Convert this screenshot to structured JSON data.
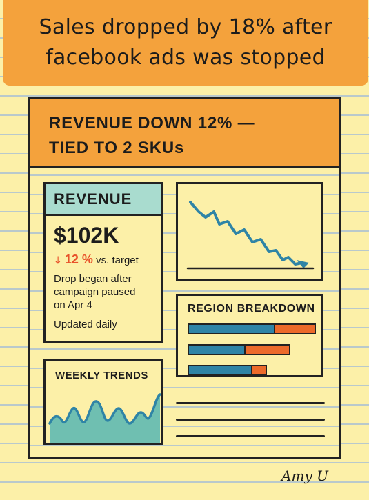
{
  "banner": {
    "line1": "Sales dropped by 18% after",
    "line2": "facebook ads was stopped"
  },
  "report": {
    "header_line1": "REVENUE  DOWN 12% —",
    "header_line2": "TIED TO 2 SKUs"
  },
  "revenue_card": {
    "title": "REVENUE",
    "value": "$102K",
    "arrow": "⇓",
    "delta": "12 %",
    "delta_suffix": "vs. target",
    "note_lines": [
      "Drop began after",
      "campaign paused",
      "on Apr 4"
    ],
    "updated": "Updated daily"
  },
  "region_card": {
    "title": "REGION BREAKDOWN",
    "bars": [
      {
        "part1": 0.68,
        "part2": 0.32
      },
      {
        "part1": 0.44,
        "part2": 0.36
      },
      {
        "part1": 0.5,
        "part2": 0.12
      }
    ]
  },
  "weekly_card": {
    "title": "WEEKLY TRENDS"
  },
  "signature": "Amy U",
  "colors": {
    "paper": "#fcf0a8",
    "orange": "#f4a23c",
    "teal": "#a9dccf",
    "blue": "#2f84a6",
    "red_orange": "#ec6a2a",
    "ink": "#222222"
  }
}
